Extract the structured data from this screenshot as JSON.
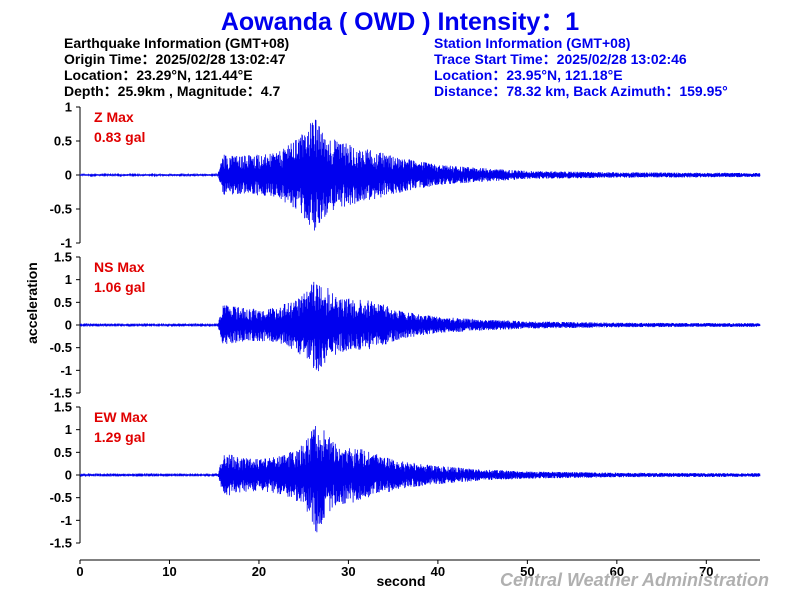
{
  "title": "Aowanda ( OWD ) Intensity：1",
  "earthquake": {
    "header": "Earthquake Information  (GMT+08)",
    "origin_time": "Origin Time：2025/02/28 13:02:47",
    "location": "Location：23.29°N, 121.44°E",
    "depth_magnitude": "Depth：25.9km , Magnitude：4.7"
  },
  "station": {
    "header": "Station Information  (GMT+08)",
    "trace_start": "Trace Start Time：2025/02/28 13:02:46",
    "location": "Location：23.95°N, 121.18°E",
    "distance": "Distance：78.32 km, Back Azimuth：159.95°"
  },
  "credit": "Central Weather Administration",
  "colors": {
    "trace": "#0000ee",
    "max_label": "#e00000",
    "title": "#0000ee",
    "credit": "#b0b0b0"
  },
  "chart_data": {
    "type": "line",
    "xlabel": "second",
    "ylabel": "acceleration",
    "xlim": [
      0,
      76
    ],
    "x_ticks": [
      0,
      10,
      20,
      30,
      40,
      50,
      60,
      70
    ],
    "x_tick_labels": [
      "0",
      "10",
      "20",
      "30",
      "40",
      "50",
      "60",
      "70"
    ],
    "grid": false,
    "panels": [
      {
        "component": "Z",
        "max_label": "Z Max",
        "max_value": "0.83 gal",
        "ylim": [
          -1,
          1
        ],
        "y_ticks": [
          -1,
          -0.5,
          0,
          0.5,
          1
        ],
        "y_tick_labels": [
          "-1",
          "-0.5",
          "0",
          "0.5",
          "1"
        ],
        "envelope": {
          "t": [
            0,
            15.4,
            16,
            18,
            20,
            22,
            24,
            25,
            26,
            26.5,
            27,
            28,
            30,
            33,
            36,
            40,
            45,
            50,
            60,
            76
          ],
          "a": [
            0.012,
            0.012,
            0.3,
            0.28,
            0.3,
            0.32,
            0.5,
            0.62,
            0.83,
            0.8,
            0.65,
            0.55,
            0.45,
            0.35,
            0.25,
            0.15,
            0.1,
            0.06,
            0.04,
            0.03
          ]
        }
      },
      {
        "component": "NS",
        "max_label": "NS Max",
        "max_value": "1.06 gal",
        "ylim": [
          -1.5,
          1.5
        ],
        "y_ticks": [
          -1.5,
          -1,
          -0.5,
          0,
          0.5,
          1,
          1.5
        ],
        "y_tick_labels": [
          "-1.5",
          "-1",
          "-0.5",
          "0",
          "0.5",
          "1",
          "1.5"
        ],
        "envelope": {
          "t": [
            0,
            15.4,
            16,
            18,
            20,
            22,
            24,
            25.5,
            26.5,
            27.5,
            29,
            32,
            34,
            36,
            40,
            45,
            50,
            60,
            76
          ],
          "a": [
            0.015,
            0.015,
            0.45,
            0.38,
            0.35,
            0.4,
            0.55,
            0.8,
            1.06,
            0.85,
            0.6,
            0.55,
            0.45,
            0.3,
            0.18,
            0.12,
            0.08,
            0.05,
            0.04
          ]
        }
      },
      {
        "component": "EW",
        "max_label": "EW Max",
        "max_value": "1.29 gal",
        "ylim": [
          -1.5,
          1.5
        ],
        "y_ticks": [
          -1.5,
          -1,
          -0.5,
          0,
          0.5,
          1,
          1.5
        ],
        "y_tick_labels": [
          "-1.5",
          "-1",
          "-0.5",
          "0",
          "0.5",
          "1",
          "1.5"
        ],
        "envelope": {
          "t": [
            0,
            15.4,
            16,
            18,
            20,
            22,
            24,
            25.5,
            26.4,
            27.5,
            29,
            31,
            34,
            36,
            40,
            45,
            50,
            60,
            76
          ],
          "a": [
            0.015,
            0.015,
            0.5,
            0.38,
            0.35,
            0.4,
            0.55,
            0.85,
            1.29,
            0.9,
            0.65,
            0.6,
            0.4,
            0.3,
            0.2,
            0.12,
            0.08,
            0.05,
            0.04
          ]
        }
      }
    ]
  }
}
